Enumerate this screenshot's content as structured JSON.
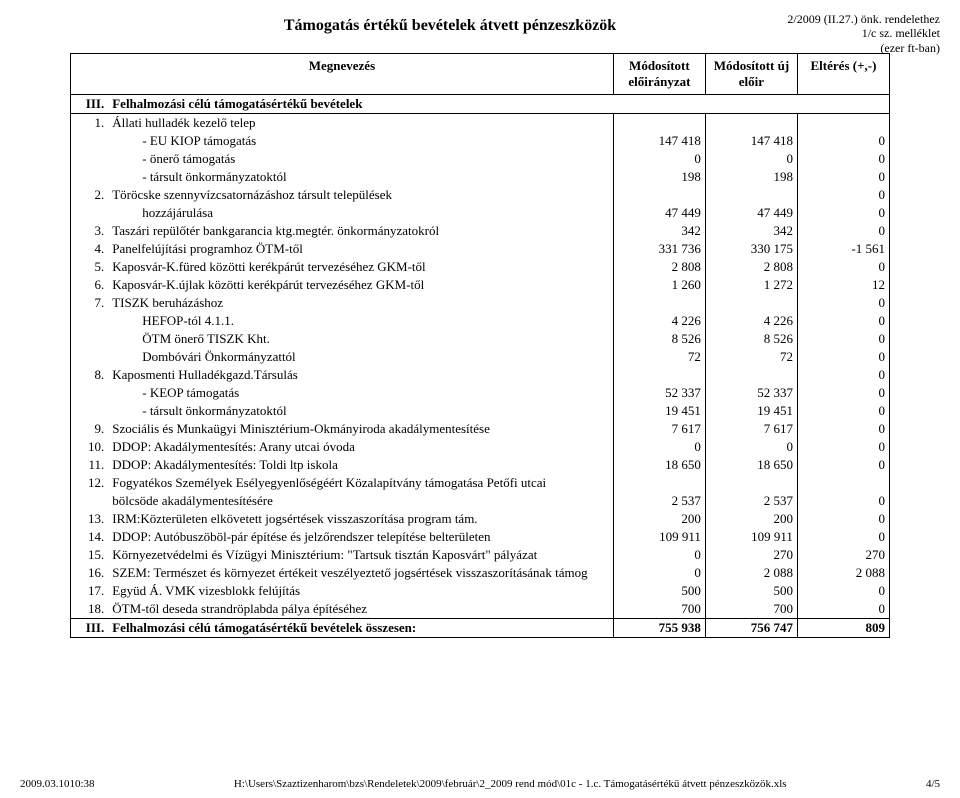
{
  "meta": {
    "ref_line1": "2/2009 (II.27.) önk. rendelethez",
    "ref_line2": "1/c sz. melléklet",
    "ref_line3": "(ezer ft-ban)"
  },
  "title": "Támogatás értékű bevételek átvett pénzeszközök",
  "header": {
    "name": "Megnevezés",
    "col1": "Módosított előirányzat",
    "col2": "Módosított új előir",
    "col3": "Eltérés (+,-)"
  },
  "section": {
    "num": "III.",
    "label": "Felhalmozási célú támogatásértékű bevételek"
  },
  "rows": [
    {
      "num": "1.",
      "name": "Állati hulladék kezelő telep",
      "v1": "",
      "v2": "",
      "v3": ""
    },
    {
      "num": "",
      "name": "- EU KIOP támogatás",
      "indent": 1,
      "v1": "147 418",
      "v2": "147 418",
      "v3": "0"
    },
    {
      "num": "",
      "name": "- önerő támogatás",
      "indent": 1,
      "v1": "0",
      "v2": "0",
      "v3": "0"
    },
    {
      "num": "",
      "name": "- társult önkormányzatoktól",
      "indent": 1,
      "v1": "198",
      "v2": "198",
      "v3": "0"
    },
    {
      "num": "2.",
      "name": "Töröcske szennyvízcsatornázáshoz társult települések",
      "v1": "",
      "v2": "",
      "v3": "0"
    },
    {
      "num": "",
      "name": "hozzájárulása",
      "indent": 1,
      "v1": "47 449",
      "v2": "47 449",
      "v3": "0"
    },
    {
      "num": "3.",
      "name": "Taszári repülőtér bankgarancia ktg.megtér. önkormányzatokról",
      "v1": "342",
      "v2": "342",
      "v3": "0"
    },
    {
      "num": "4.",
      "name": "Panelfelújítási programhoz ÖTM-től",
      "v1": "331 736",
      "v2": "330 175",
      "v3": "-1 561"
    },
    {
      "num": "5.",
      "name": "Kaposvár-K.füred közötti kerékpárút tervezéséhez GKM-től",
      "v1": "2 808",
      "v2": "2 808",
      "v3": "0"
    },
    {
      "num": "6.",
      "name": "Kaposvár-K.újlak közötti kerékpárút tervezéséhez GKM-től",
      "v1": "1 260",
      "v2": "1 272",
      "v3": "12"
    },
    {
      "num": "7.",
      "name": "TISZK beruházáshoz",
      "v1": "",
      "v2": "",
      "v3": "0"
    },
    {
      "num": "",
      "name": "HEFOP-tól 4.1.1.",
      "indent": 1,
      "v1": "4 226",
      "v2": "4 226",
      "v3": "0"
    },
    {
      "num": "",
      "name": "ÖTM önerő TISZK Kht.",
      "indent": 1,
      "v1": "8 526",
      "v2": "8 526",
      "v3": "0"
    },
    {
      "num": "",
      "name": "Dombóvári Önkormányzattól",
      "indent": 1,
      "v1": "72",
      "v2": "72",
      "v3": "0"
    },
    {
      "num": "8.",
      "name": "Kaposmenti Hulladékgazd.Társulás",
      "v1": "",
      "v2": "",
      "v3": "0"
    },
    {
      "num": "",
      "name": "- KEOP támogatás",
      "indent": 1,
      "v1": "52 337",
      "v2": "52 337",
      "v3": "0"
    },
    {
      "num": "",
      "name": "- társult önkormányzatoktól",
      "indent": 1,
      "v1": "19 451",
      "v2": "19 451",
      "v3": "0"
    },
    {
      "num": "9.",
      "name": "Szociális és Munkaügyi Minisztérium-Okmányiroda akadálymentesítése",
      "v1": "7 617",
      "v2": "7 617",
      "v3": "0"
    },
    {
      "num": "10.",
      "name": "DDOP: Akadálymentesítés: Arany utcai óvoda",
      "v1": "0",
      "v2": "0",
      "v3": "0"
    },
    {
      "num": "11.",
      "name": "DDOP: Akadálymentesítés: Toldi ltp iskola",
      "v1": "18 650",
      "v2": "18 650",
      "v3": "0"
    },
    {
      "num": "12.",
      "name": "Fogyatékos Személyek Esélyegyenlőségéért Közalapítvány támogatása Petőfi utcai",
      "v1": "",
      "v2": "",
      "v3": ""
    },
    {
      "num": "",
      "name": "bölcsöde akadálymentesítésére",
      "indent": 0,
      "v1": "2 537",
      "v2": "2 537",
      "v3": "0"
    },
    {
      "num": "13.",
      "name": "IRM:Közterületen elkövetett jogsértések visszaszorítása program tám.",
      "v1": "200",
      "v2": "200",
      "v3": "0"
    },
    {
      "num": "14.",
      "name": "DDOP: Autóbuszöböl-pár építése és jelzőrendszer telepítése belterületen",
      "v1": "109 911",
      "v2": "109 911",
      "v3": "0"
    },
    {
      "num": "15.",
      "name": "Környezetvédelmi és Vízügyi Minisztérium: \"Tartsuk tisztán Kaposvárt\" pályázat",
      "v1": "0",
      "v2": "270",
      "v3": "270"
    },
    {
      "num": "16.",
      "name": "SZEM: Természet és környezet értékeit veszélyeztető jogsértések visszaszorításának támog",
      "v1": "0",
      "v2": "2 088",
      "v3": "2 088"
    },
    {
      "num": "17.",
      "name": "Együd Á. VMK vizesblokk felújítás",
      "v1": "500",
      "v2": "500",
      "v3": "0"
    },
    {
      "num": "18.",
      "name": "ÖTM-től deseda strandröplabda pálya építéséhez",
      "v1": "700",
      "v2": "700",
      "v3": "0"
    }
  ],
  "total": {
    "num": "III.",
    "label": "Felhalmozási célú támogatásértékű bevételek összesen:",
    "v1": "755 938",
    "v2": "756 747",
    "v3": "809"
  },
  "footer": {
    "left": "2009.03.1010:38",
    "center": "H:\\Users\\Szaztizenharom\\bzs\\Rendeletek\\2009\\február\\2_2009 rend mód\\01c - 1.c. Támogatásértékű átvett pénzeszközök.xls",
    "right": "4/5"
  }
}
